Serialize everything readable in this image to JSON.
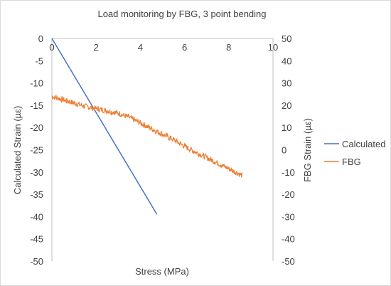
{
  "chart_data": {
    "type": "line",
    "title": "Load monitoring by FBG, 3 point bending",
    "xlabel": "Stress (MPa)",
    "ylabel": "Calculated Strain (µε)",
    "y2label": "FBG Strain (µε)",
    "xlim": [
      0,
      10
    ],
    "ylim": [
      -50,
      0
    ],
    "y2lim": [
      -50,
      50
    ],
    "x_ticks": [
      "0",
      "2",
      "4",
      "6",
      "8",
      "10"
    ],
    "y_ticks": [
      "0",
      "-5",
      "-10",
      "-15",
      "-20",
      "-25",
      "-30",
      "-35",
      "-40",
      "-45",
      "-50"
    ],
    "y2_ticks": [
      "50",
      "40",
      "30",
      "20",
      "10",
      "0",
      "-10",
      "-20",
      "-30",
      "-40",
      "-50"
    ],
    "grid": false,
    "legend": "right",
    "series": [
      {
        "name": "Calculated",
        "axis": "left",
        "color": "#4472c4",
        "x": [
          0,
          4.75
        ],
        "y": [
          0,
          -39.5
        ]
      },
      {
        "name": "FBG",
        "axis": "right",
        "color": "#ed7d31",
        "noisy": true,
        "x": [
          0,
          0.5,
          1,
          1.5,
          2,
          2.5,
          3,
          3.5,
          4,
          4.5,
          5,
          5.5,
          6,
          6.5,
          7,
          7.5,
          8,
          8.6
        ],
        "y": [
          24,
          22.5,
          21,
          19.5,
          18.5,
          17.5,
          16.5,
          14.5,
          12,
          9.5,
          7,
          4.5,
          1.5,
          -1,
          -3.5,
          -6,
          -8.5,
          -11.5
        ]
      }
    ]
  }
}
